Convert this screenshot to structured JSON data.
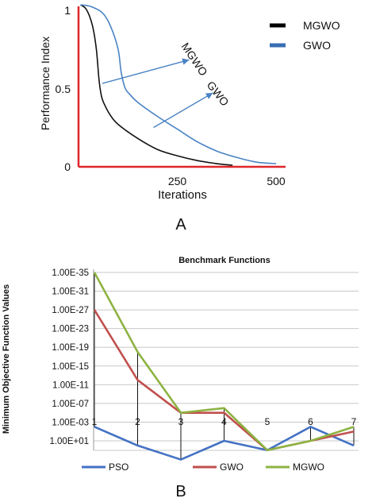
{
  "chart_data": [
    {
      "type": "line",
      "panel_label": "A",
      "xlabel": "Iterations",
      "ylabel": "Performance Index",
      "xlim": [
        0,
        500
      ],
      "ylim": [
        0,
        1
      ],
      "x_ticks": [
        {
          "value": 250,
          "label": "250"
        },
        {
          "value": 500,
          "label": "500"
        }
      ],
      "y_ticks": [
        {
          "value": 0,
          "label": "0"
        },
        {
          "value": 0.5,
          "label": "0.5"
        },
        {
          "value": 1,
          "label": "1"
        }
      ],
      "axis_color": "#e0262b",
      "legend_position": "top-right",
      "series": [
        {
          "name": "MGWO",
          "color": "#111111",
          "legend_color": "#000000",
          "x": [
            5,
            20,
            35,
            45,
            52,
            58,
            65,
            80,
            100,
            150,
            200,
            250,
            300,
            350,
            390
          ],
          "y": [
            1.03,
            1.0,
            0.9,
            0.75,
            0.55,
            0.45,
            0.4,
            0.33,
            0.27,
            0.18,
            0.11,
            0.07,
            0.04,
            0.02,
            0.01
          ]
        },
        {
          "name": "GWO",
          "color": "#4a83c4",
          "legend_color": "#3a6db3",
          "x": [
            5,
            30,
            60,
            80,
            100,
            108,
            118,
            130,
            150,
            200,
            250,
            300,
            350,
            400,
            450,
            500
          ],
          "y": [
            1.03,
            1.02,
            0.98,
            0.9,
            0.75,
            0.6,
            0.5,
            0.46,
            0.41,
            0.32,
            0.24,
            0.16,
            0.1,
            0.06,
            0.03,
            0.02
          ]
        }
      ],
      "annotations": [
        {
          "text": "MGWO",
          "target": "MGWO",
          "arrow_from": [
            60,
            0.53
          ],
          "arrow_to": [
            280,
            0.68
          ]
        },
        {
          "text": "GWO",
          "target": "GWO",
          "arrow_from": [
            190,
            0.25
          ],
          "arrow_to": [
            340,
            0.47
          ]
        }
      ]
    },
    {
      "type": "line",
      "panel_label": "B",
      "title": "Benchmark Functions",
      "ylabel": "Minimum Objective Function Values",
      "y_scale": "reversed-log",
      "categories": [
        "1",
        "2",
        "3",
        "4",
        "5",
        "6",
        "7"
      ],
      "y_ticks": [
        "1.00E+01",
        "1.00E-03",
        "1.00E-07",
        "1.00E-11",
        "1.00E-15",
        "1.00E-19",
        "1.00E-23",
        "1.00E-27",
        "1.00E-31",
        "1.00E-35"
      ],
      "y_tick_exponents": [
        1,
        -3,
        -7,
        -11,
        -15,
        -19,
        -23,
        -27,
        -31,
        -35
      ],
      "grid": true,
      "legend_position": "bottom",
      "series": [
        {
          "name": "PSO",
          "color": "#4472c4",
          "exponents": [
            -2,
            2,
            5,
            1,
            3,
            -2,
            2
          ]
        },
        {
          "name": "GWO",
          "color": "#c0504d",
          "exponents": [
            -27,
            -12,
            -5,
            -5,
            3,
            1,
            -1
          ]
        },
        {
          "name": "MGWO",
          "color": "#8db342",
          "exponents": [
            -35,
            -18,
            -5,
            -6,
            3,
            1,
            -2
          ]
        }
      ]
    }
  ]
}
